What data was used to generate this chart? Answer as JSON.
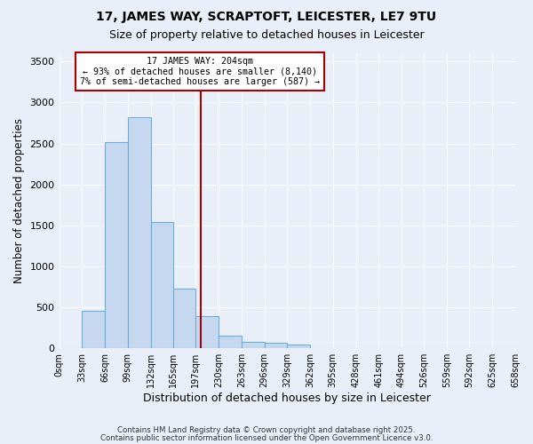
{
  "title1": "17, JAMES WAY, SCRAPTOFT, LEICESTER, LE7 9TU",
  "title2": "Size of property relative to detached houses in Leicester",
  "xlabel": "Distribution of detached houses by size in Leicester",
  "ylabel": "Number of detached properties",
  "bar_color": "#C5D8F0",
  "bar_edge_color": "#6BAED6",
  "bg_color": "#E8EFF8",
  "grid_color": "#FFFFFF",
  "bin_edges": [
    0,
    33,
    66,
    99,
    132,
    165,
    197,
    230,
    263,
    296,
    329,
    362,
    395,
    428,
    461,
    494,
    526,
    559,
    592,
    625,
    658
  ],
  "bin_labels": [
    "0sqm",
    "33sqm",
    "66sqm",
    "99sqm",
    "132sqm",
    "165sqm",
    "197sqm",
    "230sqm",
    "263sqm",
    "296sqm",
    "329sqm",
    "362sqm",
    "395sqm",
    "428sqm",
    "461sqm",
    "494sqm",
    "526sqm",
    "559sqm",
    "592sqm",
    "625sqm",
    "658sqm"
  ],
  "bar_heights": [
    5,
    460,
    2520,
    2820,
    1540,
    730,
    390,
    155,
    75,
    65,
    50,
    0,
    0,
    0,
    0,
    0,
    0,
    0,
    0,
    0
  ],
  "property_size": 204,
  "vline_color": "#AA0000",
  "annotation_line1": "17 JAMES WAY: 204sqm",
  "annotation_line2": "← 93% of detached houses are smaller (8,140)",
  "annotation_line3": "7% of semi-detached houses are larger (587) →",
  "annotation_box_color": "#FFFFFF",
  "annotation_box_edge": "#AA0000",
  "ylim": [
    0,
    3600
  ],
  "yticks": [
    0,
    500,
    1000,
    1500,
    2000,
    2500,
    3000,
    3500
  ],
  "footer1": "Contains HM Land Registry data © Crown copyright and database right 2025.",
  "footer2": "Contains public sector information licensed under the Open Government Licence v3.0."
}
